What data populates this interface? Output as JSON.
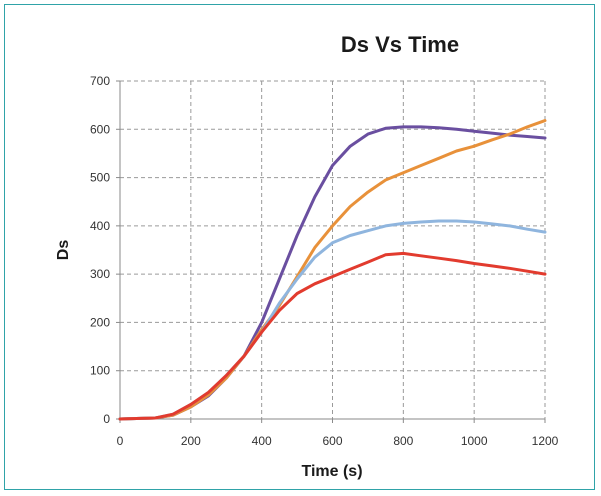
{
  "chart_data": {
    "type": "line",
    "title": "Ds Vs Time",
    "xlabel": "Time (s)",
    "ylabel": "Ds",
    "xlim": [
      0,
      1200
    ],
    "ylim": [
      0,
      700
    ],
    "xticks": [
      "0",
      "200",
      "400",
      "600",
      "800",
      "1000",
      "1200"
    ],
    "yticks": [
      "0",
      "100",
      "200",
      "300",
      "400",
      "500",
      "600",
      "700"
    ],
    "grid": true,
    "legend": "none",
    "series": [
      {
        "color": "#6a4fa0",
        "x": [
          0,
          100,
          150,
          200,
          250,
          300,
          350,
          400,
          450,
          500,
          550,
          600,
          650,
          700,
          750,
          800,
          850,
          900,
          950,
          1000,
          1050,
          1100,
          1150,
          1200
        ],
        "y": [
          0,
          2,
          8,
          25,
          48,
          85,
          130,
          200,
          290,
          380,
          460,
          525,
          565,
          590,
          602,
          605,
          605,
          603,
          600,
          596,
          592,
          588,
          585,
          582
        ]
      },
      {
        "color": "#e8913a",
        "x": [
          0,
          100,
          150,
          200,
          250,
          300,
          350,
          400,
          450,
          500,
          550,
          600,
          650,
          700,
          750,
          800,
          850,
          900,
          950,
          1000,
          1050,
          1100,
          1150,
          1200
        ],
        "y": [
          0,
          2,
          8,
          25,
          50,
          85,
          130,
          185,
          235,
          295,
          355,
          400,
          440,
          470,
          495,
          510,
          525,
          540,
          555,
          565,
          578,
          590,
          605,
          618
        ]
      },
      {
        "color": "#8fb5de",
        "x": [
          0,
          100,
          150,
          200,
          250,
          300,
          350,
          400,
          450,
          500,
          550,
          600,
          650,
          700,
          750,
          800,
          850,
          900,
          950,
          1000,
          1050,
          1100,
          1150,
          1200
        ],
        "y": [
          0,
          2,
          10,
          30,
          55,
          90,
          130,
          180,
          240,
          290,
          335,
          365,
          380,
          390,
          400,
          405,
          408,
          410,
          410,
          408,
          404,
          400,
          393,
          387
        ]
      },
      {
        "color": "#e23b2e",
        "x": [
          0,
          100,
          150,
          200,
          250,
          300,
          350,
          400,
          450,
          500,
          550,
          600,
          650,
          700,
          750,
          800,
          850,
          900,
          950,
          1000,
          1050,
          1100,
          1150,
          1200
        ],
        "y": [
          0,
          2,
          10,
          30,
          55,
          90,
          130,
          180,
          225,
          260,
          280,
          295,
          310,
          325,
          340,
          343,
          338,
          333,
          328,
          322,
          317,
          312,
          306,
          300
        ]
      }
    ]
  }
}
